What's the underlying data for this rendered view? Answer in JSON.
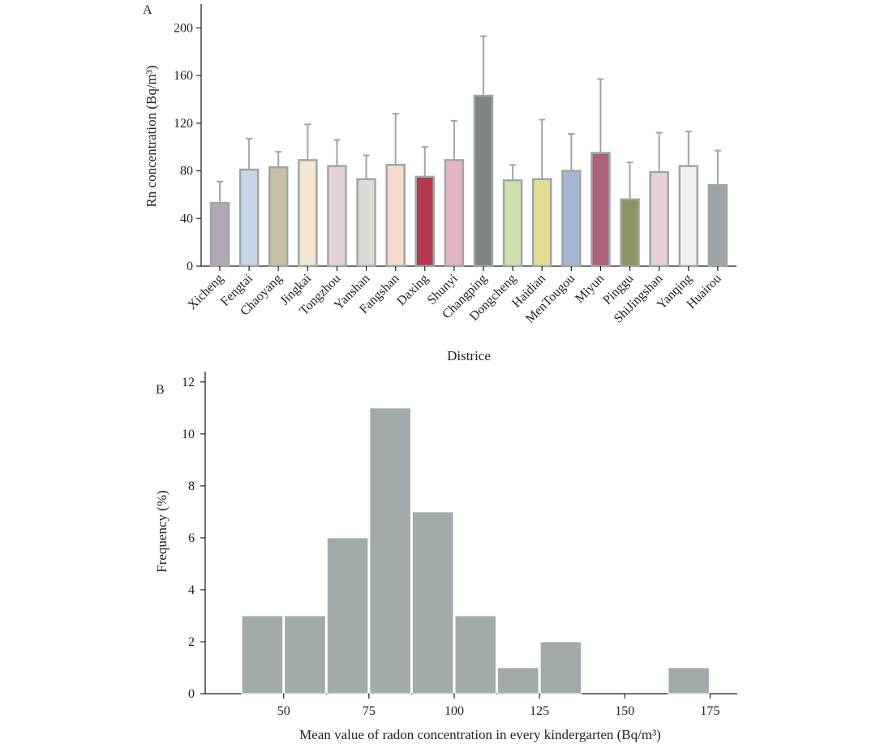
{
  "chart_data": [
    {
      "panel": "A",
      "type": "bar",
      "xlabel": "Districe",
      "ylabel": "Rn concentration (Bq/m³)",
      "ylim": [
        0,
        220
      ],
      "yticks": [
        0,
        40,
        80,
        120,
        160,
        200
      ],
      "error_bars": true,
      "categories": [
        "Xicheng",
        "Fengtai",
        "Chaoyang",
        "Jingkai",
        "Tongzhou",
        "Yanshan",
        "Fangshan",
        "Daxing",
        "Shunyi",
        "Changping",
        "Dongcheng",
        "Haidian",
        "MenTougou",
        "Miyun",
        "Pinggu",
        "ShiJingshan",
        "Yanqing",
        "Huairou"
      ],
      "values": [
        53,
        81,
        83,
        89,
        84,
        73,
        85,
        75,
        89,
        143,
        72,
        73,
        80,
        95,
        56,
        79,
        84,
        68
      ],
      "errors": [
        18,
        26,
        13,
        30,
        22,
        20,
        43,
        25,
        33,
        50,
        13,
        50,
        31,
        62,
        31,
        33,
        29,
        29
      ],
      "colors": [
        "#b2a7b4",
        "#c9d4e6",
        "#c9bea7",
        "#f6e6d4",
        "#e6d2d6",
        "#dddbd7",
        "#f4dccd",
        "#b23a4c",
        "#e2b4c5",
        "#7f8585",
        "#cfe0b0",
        "#e6de91",
        "#a4b6d6",
        "#ad5f7d",
        "#8e9463",
        "#e8d1d5",
        "#f0f1ef",
        "#9fa4a8"
      ],
      "bar_edge_color": "#a0a6a4"
    },
    {
      "panel": "B",
      "type": "bar",
      "subtype": "histogram",
      "xlabel": "Mean value of radon concentration in every kindergarten (Bq/m³)",
      "ylabel": "Frequency (%)",
      "xlim": [
        27,
        183
      ],
      "ylim": [
        0,
        12.4
      ],
      "xticks": [
        50,
        75,
        100,
        125,
        150,
        175
      ],
      "yticks": [
        0,
        2,
        4,
        6,
        8,
        10,
        12
      ],
      "bins": [
        {
          "start": 37.5,
          "end": 50,
          "value": 3
        },
        {
          "start": 50,
          "end": 62.5,
          "value": 3
        },
        {
          "start": 62.5,
          "end": 75,
          "value": 6
        },
        {
          "start": 75,
          "end": 87.5,
          "value": 11
        },
        {
          "start": 87.5,
          "end": 100,
          "value": 7
        },
        {
          "start": 100,
          "end": 112.5,
          "value": 3
        },
        {
          "start": 112.5,
          "end": 125,
          "value": 1
        },
        {
          "start": 125,
          "end": 137.5,
          "value": 2
        },
        {
          "start": 137.5,
          "end": 150,
          "value": 0
        },
        {
          "start": 150,
          "end": 162.5,
          "value": 0
        },
        {
          "start": 162.5,
          "end": 175,
          "value": 1
        }
      ],
      "bar_color": "#a2aaab"
    }
  ]
}
